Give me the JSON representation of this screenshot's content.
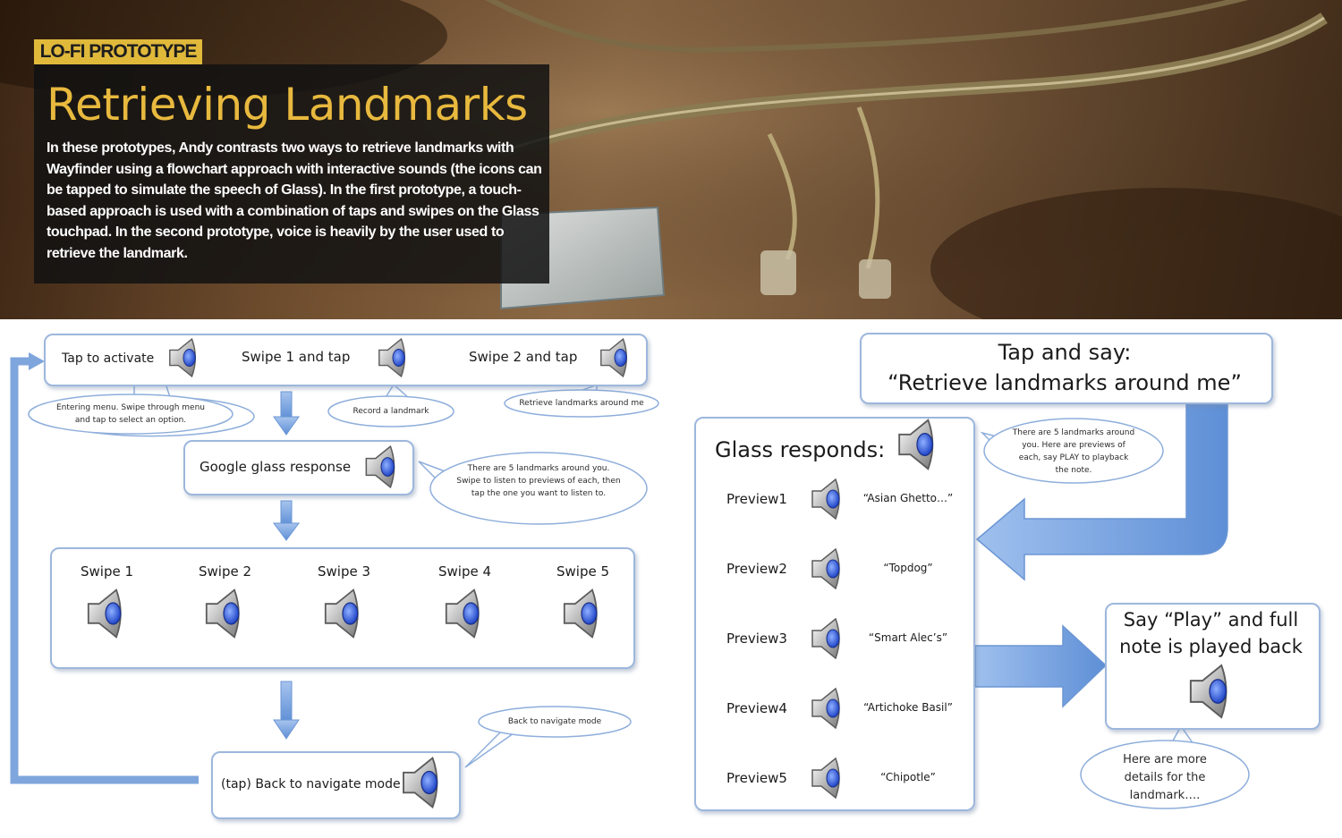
{
  "hero": {
    "tag": "LO-FI PROTOTYPE",
    "title": "Retrieving Landmarks",
    "description": "In these prototypes, Andy contrasts two ways to retrieve landmarks with Wayfinder using a flowchart approach with interactive sounds (the icons can be tapped to simulate the speech of Glass). In the first prototype, a touch-based approach is used with a combination of taps and swipes on the Glass touchpad. In the second prototype, voice is heavily by the user used to retrieve the landmark."
  },
  "touch_flow": {
    "top_box": {
      "step1": "Tap to activate",
      "step2": "Swipe 1 and tap",
      "step3": "Swipe 2 and tap"
    },
    "bubbles": {
      "entering": "Entering menu. Swipe through menu and tap to select an option.",
      "record": "Record a landmark",
      "retrieve": "Retrieve landmarks around me",
      "google_response": "There are 5 landmarks around you. Swipe to listen to previews of each, then tap the one you want to listen to.",
      "back": "Back to navigate mode"
    },
    "google_box": "Google glass response",
    "swipes": [
      "Swipe 1",
      "Swipe 2",
      "Swipe 3",
      "Swipe 4",
      "Swipe 5"
    ],
    "back_box": "(tap) Back to navigate mode"
  },
  "voice_flow": {
    "command_line1": "Tap and say:",
    "command_line2": "“Retrieve landmarks around me”",
    "responds_title": "Glass responds:",
    "responds_bubble": "There are 5 landmarks around you. Here are previews of each, say PLAY to playback the note.",
    "previews": [
      {
        "label": "Preview1",
        "note": "“Asian Ghetto…”"
      },
      {
        "label": "Preview2",
        "note": "“Topdog”"
      },
      {
        "label": "Preview3",
        "note": "“Smart Alec’s”"
      },
      {
        "label": "Preview4",
        "note": "“Artichoke Basil”"
      },
      {
        "label": "Preview5",
        "note": "“Chipotle”"
      }
    ],
    "play_line1": "Say “Play” and full",
    "play_line2": "note is played back",
    "details_bubble": "Here are more details for the landmark…."
  },
  "colors": {
    "accent_gold": "#e0b93b",
    "box_border": "#9db7dc",
    "arrow_blue": "#7fa6dc",
    "speaker_blue": "#3a63d8"
  }
}
